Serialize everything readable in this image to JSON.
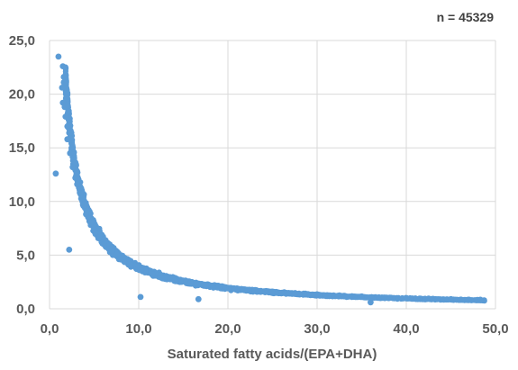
{
  "chart_data": {
    "type": "scatter",
    "annotation": "n = 45329",
    "xlabel": "Saturated fatty acids/(EPA+DHA)",
    "ylabel": "",
    "xlim": [
      0,
      50
    ],
    "ylim": [
      0,
      25
    ],
    "x_ticks": [
      "0,0",
      "10,0",
      "20,0",
      "30,0",
      "40,0",
      "50,0"
    ],
    "y_ticks": [
      "0,0",
      "5,0",
      "10,0",
      "15,0",
      "20,0",
      "25,0"
    ],
    "grid": true,
    "legend": "none",
    "series": [
      {
        "color": "#5b9bd5",
        "trend": "y ≈ 38.5 / x (approximate reciprocal relationship)",
        "points": [
          [
            1.0,
            23.5
          ],
          [
            1.5,
            22.6
          ],
          [
            1.6,
            21.6
          ],
          [
            1.6,
            21.1
          ],
          [
            1.4,
            20.6
          ],
          [
            1.5,
            19.2
          ],
          [
            1.7,
            18.8
          ],
          [
            1.8,
            17.9
          ],
          [
            2.0,
            17.0
          ],
          [
            2.2,
            16.4
          ],
          [
            2.0,
            15.8
          ],
          [
            0.7,
            12.6
          ],
          [
            2.3,
            14.5
          ],
          [
            2.6,
            13.2
          ],
          [
            2.9,
            12.2
          ],
          [
            3.1,
            11.6
          ],
          [
            3.4,
            10.8
          ],
          [
            3.8,
            9.6
          ],
          [
            4.1,
            8.8
          ],
          [
            4.6,
            8.0
          ],
          [
            5.1,
            7.1
          ],
          [
            5.5,
            6.6
          ],
          [
            6.1,
            6.0
          ],
          [
            7.0,
            5.4
          ],
          [
            8.0,
            4.6
          ],
          [
            9.0,
            4.1
          ],
          [
            10.2,
            3.6
          ],
          [
            10.2,
            1.1
          ],
          [
            2.2,
            5.5
          ],
          [
            11.5,
            3.2
          ],
          [
            12.5,
            2.9
          ],
          [
            14.0,
            2.6
          ],
          [
            15.8,
            2.4
          ],
          [
            16.7,
            0.9
          ],
          [
            17.5,
            2.2
          ],
          [
            19.0,
            2.0
          ],
          [
            21.0,
            1.9
          ],
          [
            23.0,
            1.7
          ],
          [
            25.0,
            1.6
          ],
          [
            27.5,
            1.45
          ],
          [
            30.0,
            1.35
          ],
          [
            32.5,
            1.25
          ],
          [
            35.0,
            1.15
          ],
          [
            36.0,
            0.6
          ],
          [
            37.5,
            1.05
          ],
          [
            40.0,
            1.0
          ],
          [
            42.5,
            0.95
          ],
          [
            45.0,
            0.9
          ],
          [
            47.0,
            0.85
          ],
          [
            48.3,
            0.85
          ]
        ]
      }
    ]
  }
}
